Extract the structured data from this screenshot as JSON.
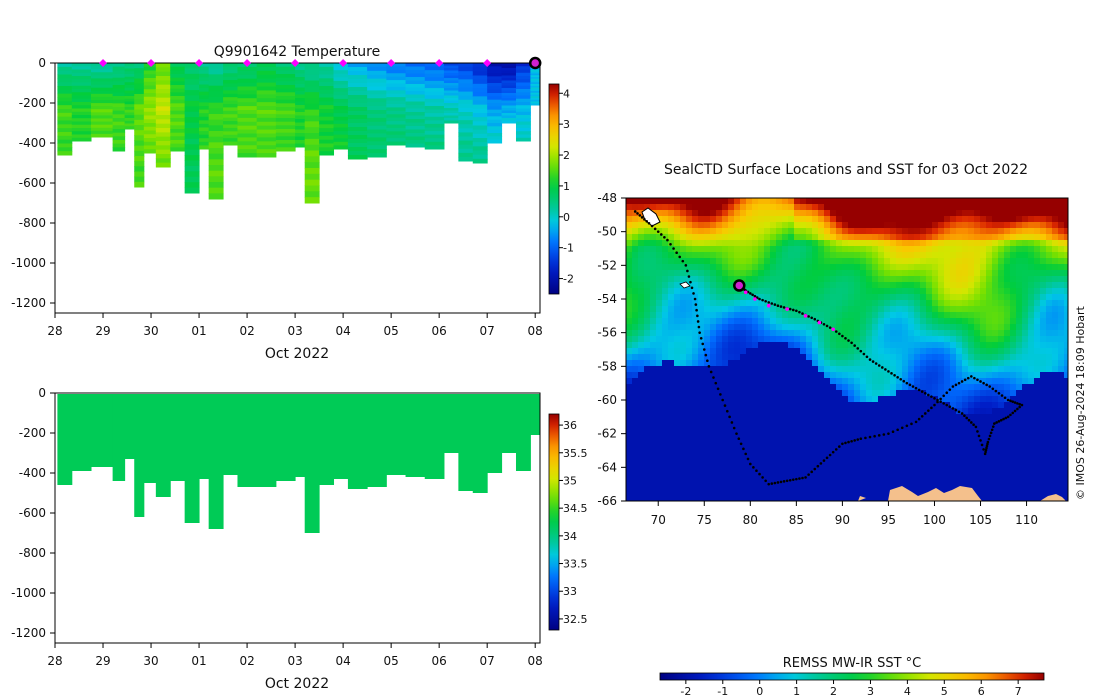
{
  "chart_data": [
    {
      "type": "heatmap",
      "title": "Q9901642  Temperature",
      "xlabel": "Oct 2022",
      "ylabel": "",
      "x_tick_labels": [
        "28",
        "29",
        "30",
        "01",
        "02",
        "03",
        "04",
        "05",
        "06",
        "07",
        "08"
      ],
      "y_ticks": [
        0,
        -200,
        -400,
        -600,
        -800,
        -1000,
        -1200
      ],
      "ylim": [
        -1250,
        0
      ],
      "xlim_days": [
        0,
        10.1
      ],
      "colorbar_ticks": [
        -2,
        -1,
        0,
        1,
        2,
        3,
        4
      ],
      "colorbar_range": [
        -2.5,
        4.3
      ],
      "profile_markers_days": [
        1,
        2,
        3,
        4,
        5,
        6,
        7,
        8,
        9
      ],
      "current_position_day": 10,
      "profiles": [
        {
          "day": 0.05,
          "depth": 460,
          "top": 0.3,
          "mid": 1.4,
          "deep": 1.3
        },
        {
          "day": 0.35,
          "depth": 390,
          "top": 0.3,
          "mid": 1.2,
          "deep": 1.3
        },
        {
          "day": 0.75,
          "depth": 370,
          "top": 0.2,
          "mid": 1.5,
          "deep": 1.4
        },
        {
          "day": 1.2,
          "depth": 440,
          "top": 0.4,
          "mid": 1.4,
          "deep": 1.3
        },
        {
          "day": 1.45,
          "depth": 330,
          "top": 0.5,
          "mid": 1.3,
          "deep": 1.3
        },
        {
          "day": 1.65,
          "depth": 620,
          "top": 0.6,
          "mid": 1.6,
          "deep": 1.4
        },
        {
          "day": 1.85,
          "depth": 450,
          "top": 1.2,
          "mid": 1.9,
          "deep": 1.5
        },
        {
          "day": 2.1,
          "depth": 520,
          "top": 1.6,
          "mid": 2.2,
          "deep": 1.6
        },
        {
          "day": 2.4,
          "depth": 440,
          "top": 0.8,
          "mid": 1.5,
          "deep": 1.4
        },
        {
          "day": 2.7,
          "depth": 650,
          "top": 0.6,
          "mid": 1.0,
          "deep": 0.8
        },
        {
          "day": 3.0,
          "depth": 430,
          "top": 0.4,
          "mid": 1.2,
          "deep": 1.3
        },
        {
          "day": 3.2,
          "depth": 680,
          "top": 0.3,
          "mid": 1.3,
          "deep": 1.5
        },
        {
          "day": 3.5,
          "depth": 410,
          "top": 0.5,
          "mid": 1.4,
          "deep": 1.3
        },
        {
          "day": 3.8,
          "depth": 470,
          "top": 0.6,
          "mid": 1.5,
          "deep": 1.4
        },
        {
          "day": 4.2,
          "depth": 470,
          "top": 0.8,
          "mid": 1.5,
          "deep": 1.4
        },
        {
          "day": 4.6,
          "depth": 440,
          "top": 0.6,
          "mid": 1.4,
          "deep": 1.3
        },
        {
          "day": 5.0,
          "depth": 420,
          "top": 0.4,
          "mid": 1.2,
          "deep": 1.2
        },
        {
          "day": 5.2,
          "depth": 700,
          "top": 0.3,
          "mid": 1.3,
          "deep": 1.6
        },
        {
          "day": 5.5,
          "depth": 460,
          "top": 0.2,
          "mid": 1.1,
          "deep": 1.2
        },
        {
          "day": 5.8,
          "depth": 430,
          "top": -0.2,
          "mid": 0.9,
          "deep": 1.2
        },
        {
          "day": 6.1,
          "depth": 480,
          "top": -0.4,
          "mid": 0.7,
          "deep": 0.8
        },
        {
          "day": 6.5,
          "depth": 470,
          "top": -0.6,
          "mid": 0.5,
          "deep": 0.7
        },
        {
          "day": 6.9,
          "depth": 410,
          "top": -0.8,
          "mid": 0.4,
          "deep": 0.7
        },
        {
          "day": 7.3,
          "depth": 420,
          "top": -0.9,
          "mid": 0.3,
          "deep": 0.6
        },
        {
          "day": 7.7,
          "depth": 430,
          "top": -1.0,
          "mid": 0.2,
          "deep": 0.6
        },
        {
          "day": 8.1,
          "depth": 300,
          "top": -1.2,
          "mid": 0.1,
          "deep": 0.6
        },
        {
          "day": 8.4,
          "depth": 490,
          "top": -1.3,
          "mid": 0.0,
          "deep": 0.5
        },
        {
          "day": 8.7,
          "depth": 500,
          "top": -1.6,
          "mid": -0.2,
          "deep": 0.5
        },
        {
          "day": 9.0,
          "depth": 400,
          "top": -2.0,
          "mid": -0.5,
          "deep": 0.4
        },
        {
          "day": 9.3,
          "depth": 300,
          "top": -2.1,
          "mid": -0.4,
          "deep": 0.4
        },
        {
          "day": 9.6,
          "depth": 390,
          "top": -1.5,
          "mid": -0.3,
          "deep": 0.4
        },
        {
          "day": 9.9,
          "depth": 210,
          "top": -0.3,
          "mid": -0.2,
          "deep": 0.2
        }
      ]
    },
    {
      "type": "heatmap",
      "title": "",
      "xlabel": "Oct 2022",
      "x_tick_labels": [
        "28",
        "29",
        "30",
        "01",
        "02",
        "03",
        "04",
        "05",
        "06",
        "07",
        "08"
      ],
      "y_ticks": [
        0,
        -200,
        -400,
        -600,
        -800,
        -1000,
        -1200
      ],
      "ylim": [
        -1250,
        0
      ],
      "colorbar_ticks": [
        32.5,
        33,
        33.5,
        34,
        34.5,
        35,
        35.5,
        36
      ],
      "colorbar_range": [
        32.3,
        36.2
      ],
      "uniform_value": 34.2,
      "profile_depths": [
        460,
        390,
        370,
        440,
        330,
        620,
        450,
        520,
        440,
        650,
        430,
        680,
        410,
        470,
        470,
        440,
        420,
        700,
        460,
        430,
        480,
        470,
        410,
        420,
        430,
        300,
        490,
        500,
        400,
        300,
        390,
        210
      ]
    },
    {
      "type": "map",
      "title": "SealCTD Surface Locations and SST for 03 Oct 2022",
      "xlabel": "",
      "ylabel": "",
      "x_ticks": [
        70,
        75,
        80,
        85,
        90,
        95,
        100,
        105,
        110
      ],
      "y_ticks": [
        -48,
        -50,
        -52,
        -54,
        -56,
        -58,
        -60,
        -62,
        -64,
        -66
      ],
      "xlim": [
        66.5,
        114.5
      ],
      "ylim": [
        -66,
        -48
      ],
      "current_position": {
        "lon": 78.8,
        "lat": -53.2
      },
      "recent_positions": [
        {
          "lon": 79.5,
          "lat": -53.6
        },
        {
          "lon": 80.5,
          "lat": -54.0
        },
        {
          "lon": 82.0,
          "lat": -54.4
        },
        {
          "lon": 84.0,
          "lat": -54.6
        },
        {
          "lon": 86.0,
          "lat": -55.0
        },
        {
          "lon": 87.5,
          "lat": -55.4
        },
        {
          "lon": 89.0,
          "lat": -55.8
        }
      ],
      "track": [
        {
          "lon": 67.5,
          "lat": -48.8
        },
        {
          "lon": 69,
          "lat": -49.5
        },
        {
          "lon": 71,
          "lat": -50.5
        },
        {
          "lon": 73,
          "lat": -52
        },
        {
          "lon": 74,
          "lat": -54
        },
        {
          "lon": 74.5,
          "lat": -56
        },
        {
          "lon": 75.5,
          "lat": -58
        },
        {
          "lon": 77,
          "lat": -60
        },
        {
          "lon": 78.5,
          "lat": -62
        },
        {
          "lon": 80,
          "lat": -63.8
        },
        {
          "lon": 82,
          "lat": -65
        },
        {
          "lon": 84,
          "lat": -64.8
        },
        {
          "lon": 86,
          "lat": -64.6
        },
        {
          "lon": 88,
          "lat": -63.6
        },
        {
          "lon": 90,
          "lat": -62.6
        },
        {
          "lon": 92,
          "lat": -62.3
        },
        {
          "lon": 95,
          "lat": -62.0
        },
        {
          "lon": 98,
          "lat": -61.3
        },
        {
          "lon": 100,
          "lat": -60.3
        },
        {
          "lon": 102,
          "lat": -59.2
        },
        {
          "lon": 104,
          "lat": -58.6
        },
        {
          "lon": 106,
          "lat": -59.2
        },
        {
          "lon": 108,
          "lat": -60.0
        },
        {
          "lon": 109.5,
          "lat": -60.3
        },
        {
          "lon": 108,
          "lat": -61.0
        },
        {
          "lon": 106.5,
          "lat": -61.4
        },
        {
          "lon": 105.8,
          "lat": -62.5
        },
        {
          "lon": 105.5,
          "lat": -63.2
        },
        {
          "lon": 104.5,
          "lat": -61.6
        },
        {
          "lon": 103,
          "lat": -60.8
        },
        {
          "lon": 101,
          "lat": -60.2
        },
        {
          "lon": 99,
          "lat": -59.6
        },
        {
          "lon": 97,
          "lat": -59.0
        },
        {
          "lon": 95,
          "lat": -58.3
        },
        {
          "lon": 93,
          "lat": -57.6
        },
        {
          "lon": 91,
          "lat": -56.6
        },
        {
          "lon": 89,
          "lat": -55.8
        },
        {
          "lon": 87,
          "lat": -55.2
        },
        {
          "lon": 85,
          "lat": -54.7
        },
        {
          "lon": 83,
          "lat": -54.4
        },
        {
          "lon": 81,
          "lat": -54.0
        },
        {
          "lon": 79.5,
          "lat": -53.5
        },
        {
          "lon": 78.8,
          "lat": -53.2
        }
      ],
      "credit": "© IMOS 26-Aug-2024 18:09 Hobart"
    }
  ],
  "sst_colorbar": {
    "label": "REMSS MW-IR SST °C",
    "ticks": [
      -2,
      -1,
      0,
      1,
      2,
      3,
      4,
      5,
      6,
      7
    ],
    "range": [
      -2.7,
      7.7
    ]
  },
  "colors": {
    "profile_marker": "#ff00ff",
    "track": "#000000",
    "current_marker_fill": "#d020d0",
    "land": "#f4c08c"
  }
}
